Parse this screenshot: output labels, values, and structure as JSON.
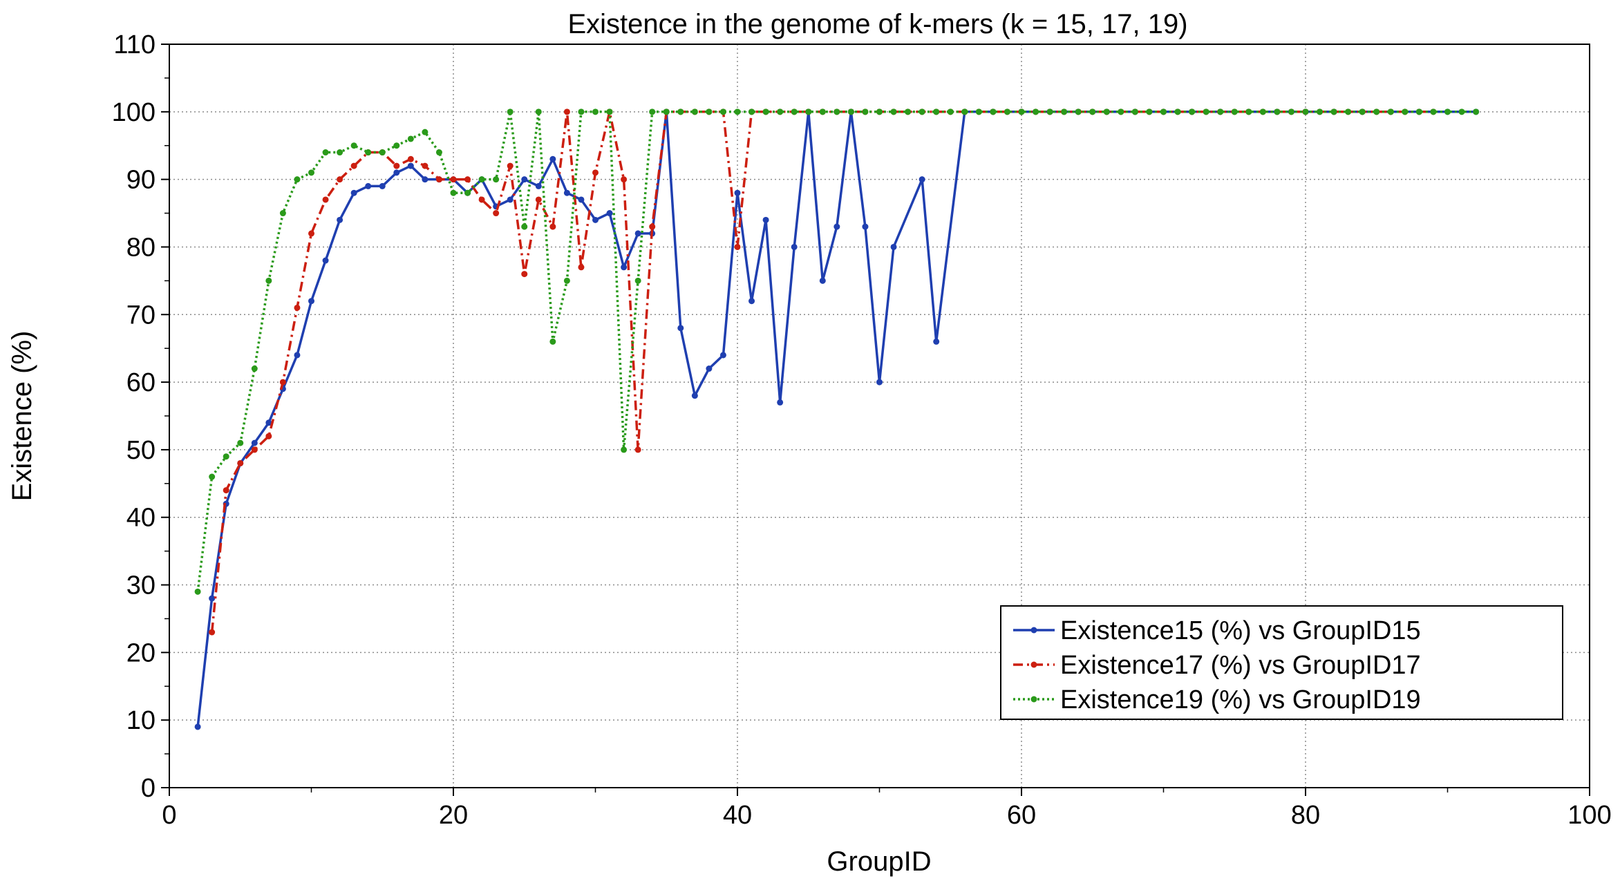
{
  "chart_data": {
    "type": "line",
    "title": "Existence in the genome of k-mers (k = 15, 17, 19)",
    "xlabel": "GroupID",
    "ylabel": "Existence (%)",
    "xlim": [
      0,
      100
    ],
    "ylim": [
      0,
      110
    ],
    "xticks": [
      0,
      20,
      40,
      60,
      80,
      100
    ],
    "yticks": [
      0,
      10,
      20,
      30,
      40,
      50,
      60,
      70,
      80,
      90,
      100,
      110
    ],
    "grid": true,
    "legend_position": "bottom-right",
    "series": [
      {
        "name": "Existence15 (%) vs GroupID15",
        "color": "#1f3fb0",
        "line_style": "solid",
        "x": [
          2,
          3,
          4,
          5,
          6,
          7,
          8,
          9,
          10,
          11,
          12,
          13,
          14,
          15,
          16,
          17,
          18,
          19,
          20,
          21,
          22,
          23,
          24,
          25,
          26,
          27,
          28,
          29,
          30,
          31,
          32,
          33,
          34,
          35,
          36,
          37,
          38,
          39,
          40,
          41,
          42,
          43,
          44,
          45,
          46,
          47,
          48,
          49,
          50,
          51,
          53,
          54,
          56,
          58,
          60,
          62,
          64,
          66,
          68,
          70,
          72,
          74,
          76,
          78,
          80,
          82,
          84,
          86,
          88,
          90,
          92
        ],
        "y": [
          9,
          28,
          42,
          48,
          51,
          54,
          59,
          64,
          72,
          78,
          84,
          88,
          89,
          89,
          91,
          92,
          90,
          90,
          90,
          88,
          90,
          86,
          87,
          90,
          89,
          93,
          88,
          87,
          84,
          85,
          77,
          82,
          82,
          100,
          68,
          58,
          62,
          64,
          88,
          72,
          84,
          57,
          80,
          100,
          75,
          83,
          100,
          83,
          60,
          80,
          90,
          66,
          100,
          100,
          100,
          100,
          100,
          100,
          100,
          100,
          100,
          100,
          100,
          100,
          100,
          100,
          100,
          100,
          100,
          100,
          100
        ]
      },
      {
        "name": "Existence17 (%) vs GroupID17",
        "color": "#cc1f10",
        "line_style": "dash-dot",
        "x": [
          3,
          4,
          5,
          6,
          7,
          8,
          9,
          10,
          11,
          12,
          13,
          14,
          15,
          16,
          17,
          18,
          19,
          20,
          21,
          22,
          23,
          24,
          25,
          26,
          27,
          28,
          29,
          30,
          31,
          32,
          33,
          34,
          35,
          36,
          37,
          38,
          39,
          40,
          41,
          42,
          43,
          44,
          45,
          46,
          47,
          48,
          49,
          50,
          51,
          52,
          53,
          54,
          55,
          56,
          57,
          58,
          59,
          60,
          61,
          62,
          63,
          64,
          65,
          66,
          67,
          68,
          69,
          70,
          71,
          72,
          73,
          74,
          75,
          76,
          77,
          78,
          79,
          80,
          81,
          82,
          83,
          84,
          85,
          86,
          87,
          88,
          89
        ],
        "y": [
          23,
          44,
          48,
          50,
          52,
          60,
          71,
          82,
          87,
          90,
          92,
          94,
          94,
          92,
          93,
          92,
          90,
          90,
          90,
          87,
          85,
          92,
          76,
          87,
          83,
          100,
          77,
          91,
          100,
          90,
          50,
          83,
          100,
          100,
          100,
          100,
          100,
          80,
          100,
          100,
          100,
          100,
          100,
          100,
          100,
          100,
          100,
          100,
          100,
          100,
          100,
          100,
          100,
          100,
          100,
          100,
          100,
          100,
          100,
          100,
          100,
          100,
          100,
          100,
          100,
          100,
          100,
          100,
          100,
          100,
          100,
          100,
          100,
          100,
          100,
          100,
          100,
          100,
          100,
          100,
          100,
          100,
          100,
          100,
          100,
          100,
          100
        ]
      },
      {
        "name": "Existence19 (%) vs GroupID19",
        "color": "#2a9a1a",
        "line_style": "dotted",
        "x": [
          2,
          3,
          4,
          5,
          6,
          7,
          8,
          9,
          10,
          11,
          12,
          13,
          14,
          15,
          16,
          17,
          18,
          19,
          20,
          21,
          22,
          23,
          24,
          25,
          26,
          27,
          28,
          29,
          30,
          31,
          32,
          33,
          34,
          35,
          36,
          37,
          38,
          39,
          40,
          41,
          42,
          43,
          44,
          45,
          46,
          47,
          48,
          49,
          50,
          51,
          52,
          53,
          54,
          55,
          56,
          57,
          58,
          59,
          60,
          61,
          62,
          63,
          64,
          65,
          66,
          67,
          68,
          69,
          70,
          71,
          72,
          73,
          74,
          75,
          76,
          77,
          78,
          79,
          80,
          81,
          82,
          83,
          84,
          85,
          86,
          87,
          88,
          89,
          90,
          91,
          92
        ],
        "y": [
          29,
          46,
          49,
          51,
          62,
          75,
          85,
          90,
          91,
          94,
          94,
          95,
          94,
          94,
          95,
          96,
          97,
          94,
          88,
          88,
          90,
          90,
          100,
          83,
          100,
          66,
          75,
          100,
          100,
          100,
          50,
          75,
          100,
          100,
          100,
          100,
          100,
          100,
          100,
          100,
          100,
          100,
          100,
          100,
          100,
          100,
          100,
          100,
          100,
          100,
          100,
          100,
          100,
          100,
          100,
          100,
          100,
          100,
          100,
          100,
          100,
          100,
          100,
          100,
          100,
          100,
          100,
          100,
          100,
          100,
          100,
          100,
          100,
          100,
          100,
          100,
          100,
          100,
          100,
          100,
          100,
          100,
          100,
          100,
          100,
          100,
          100,
          100,
          100,
          100,
          100
        ]
      }
    ]
  }
}
